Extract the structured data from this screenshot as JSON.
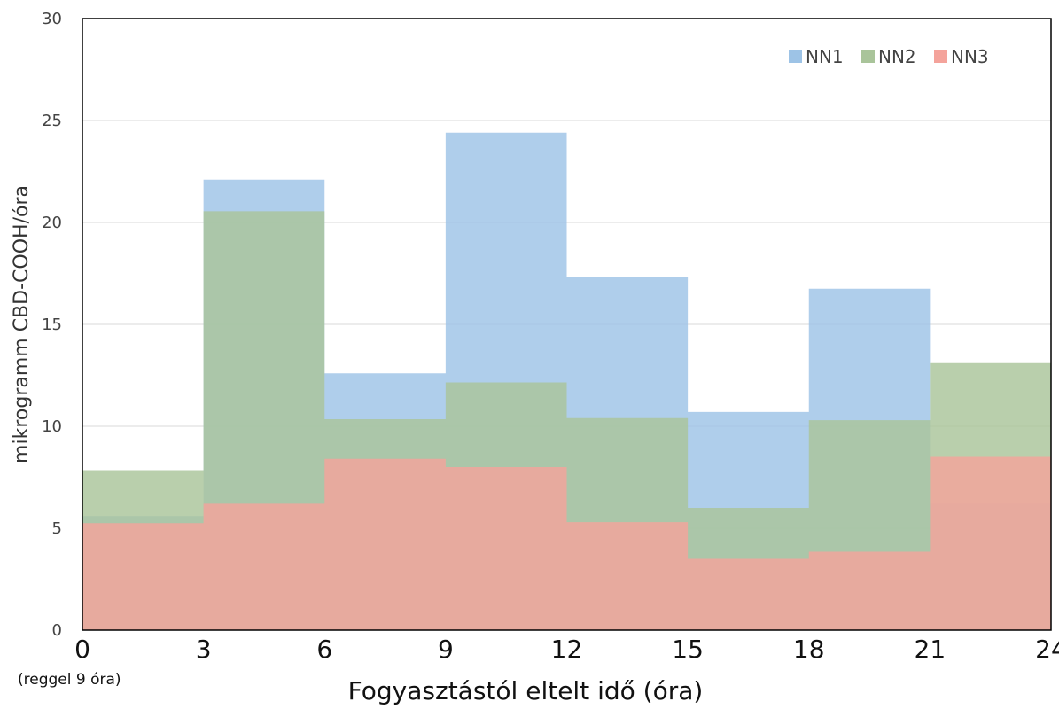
{
  "chart_data": {
    "type": "area",
    "step": true,
    "x_edges": [
      0,
      3,
      6,
      9,
      12,
      15,
      18,
      21,
      24
    ],
    "xticks": [
      "0",
      "3",
      "6",
      "9",
      "12",
      "15",
      "18",
      "21",
      "24"
    ],
    "xtick_note": "(reggel 9 óra)",
    "xlabel": "Fogyasztástól eltelt idő (óra)",
    "ylabel": "mikrogramm CBD-COOH/óra",
    "ylim": [
      0,
      30
    ],
    "yticks": [
      "0",
      "5",
      "10",
      "15",
      "20",
      "25",
      "30"
    ],
    "grid": true,
    "legend_position": "top-right",
    "series": [
      {
        "name": "NN1",
        "color": "#9dc3e6",
        "values": [
          5.6,
          22.1,
          12.6,
          24.4,
          17.35,
          10.7,
          16.75,
          6.2
        ]
      },
      {
        "name": "NN2",
        "color": "#a9c49a",
        "values": [
          7.85,
          20.55,
          10.35,
          12.15,
          10.4,
          6.0,
          10.3,
          13.1
        ]
      },
      {
        "name": "NN3",
        "color": "#f4a39b",
        "values": [
          5.25,
          6.2,
          8.4,
          8.0,
          5.3,
          3.5,
          3.85,
          8.5
        ]
      }
    ]
  }
}
